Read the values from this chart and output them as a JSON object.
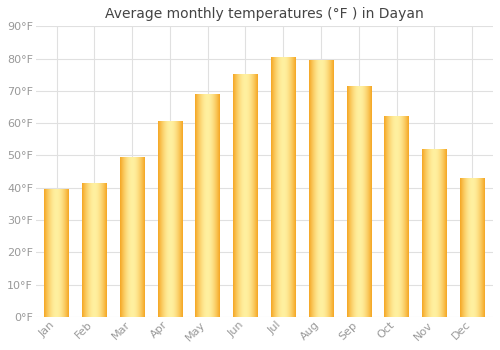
{
  "title": "Average monthly temperatures (°F ) in Dayan",
  "months": [
    "Jan",
    "Feb",
    "Mar",
    "Apr",
    "May",
    "Jun",
    "Jul",
    "Aug",
    "Sep",
    "Oct",
    "Nov",
    "Dec"
  ],
  "values": [
    39.5,
    41.5,
    49.5,
    60.5,
    69.0,
    75.0,
    80.5,
    79.5,
    71.5,
    62.0,
    52.0,
    43.0
  ],
  "bar_color_edge": "#F5A623",
  "bar_color_mid": "#FFD84D",
  "bar_color_highlight": "#FFF0A0",
  "ylim": [
    0,
    90
  ],
  "yticks": [
    0,
    10,
    20,
    30,
    40,
    50,
    60,
    70,
    80,
    90
  ],
  "ytick_labels": [
    "0°F",
    "10°F",
    "20°F",
    "30°F",
    "40°F",
    "50°F",
    "60°F",
    "70°F",
    "80°F",
    "90°F"
  ],
  "background_color": "#ffffff",
  "grid_color": "#e0e0e0",
  "title_fontsize": 10,
  "tick_fontsize": 8,
  "bar_width": 0.65
}
